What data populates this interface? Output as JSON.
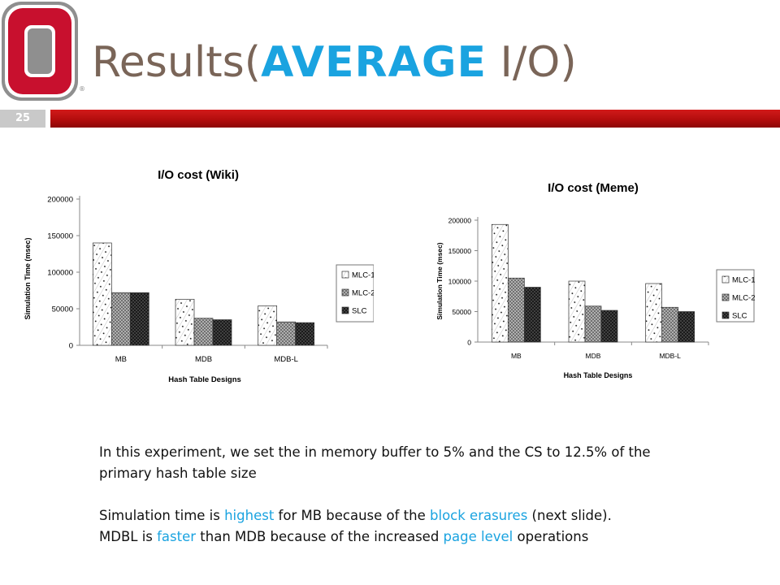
{
  "slide": {
    "title_prefix": "Results(",
    "title_accent": "AVERAGE",
    "title_suffix": " I/O)",
    "slide_number": "25",
    "colors": {
      "title": "#7a6558",
      "accent": "#1aa3e0",
      "bar": "#b30d0d"
    },
    "logo_icon": "block-o-logo-icon"
  },
  "chart_data": [
    {
      "type": "bar",
      "title": "I/O cost (Wiki)",
      "xlabel": "Hash Table Designs",
      "ylabel": "Simulation Time (msec)",
      "ylim": [
        0,
        200000
      ],
      "yticks": [
        0,
        50000,
        100000,
        150000,
        200000
      ],
      "grid": false,
      "legend": "right",
      "categories": [
        "MB",
        "MDB",
        "MDB-L"
      ],
      "series": [
        {
          "name": "MLC-1",
          "values": [
            140000,
            63000,
            54000
          ],
          "pattern": "dots"
        },
        {
          "name": "MLC-2",
          "values": [
            72000,
            37000,
            32000
          ],
          "pattern": "crosshatch"
        },
        {
          "name": "SLC",
          "values": [
            72000,
            35000,
            31000
          ],
          "pattern": "dark"
        }
      ]
    },
    {
      "type": "bar",
      "title": "I/O cost (Meme)",
      "xlabel": "Hash Table Designs",
      "ylabel": "Simulation Time (msec)",
      "ylim": [
        0,
        200000
      ],
      "yticks": [
        0,
        50000,
        100000,
        150000,
        200000
      ],
      "grid": false,
      "legend": "right",
      "categories": [
        "MB",
        "MDB",
        "MDB-L"
      ],
      "series": [
        {
          "name": "MLC-1",
          "values": [
            193000,
            100000,
            96000
          ],
          "pattern": "dots"
        },
        {
          "name": "MLC-2",
          "values": [
            105000,
            59000,
            57000
          ],
          "pattern": "crosshatch"
        },
        {
          "name": "SLC",
          "values": [
            90000,
            52000,
            50000
          ],
          "pattern": "dark"
        }
      ]
    }
  ],
  "body": {
    "para1": "In this experiment, we set the in memory buffer to 5% and the CS to 12.5% of the primary hash table size",
    "line2_a": "Simulation time is ",
    "line2_hl1": "highest",
    "line2_b": " for MB because of the ",
    "line2_hl2": "block erasures",
    "line2_c": " (next slide).",
    "line3_a": "MDBL is ",
    "line3_hl1": "faster",
    "line3_b": " than MDB because of the increased ",
    "line3_hl2": "page level",
    "line3_c": " operations"
  }
}
